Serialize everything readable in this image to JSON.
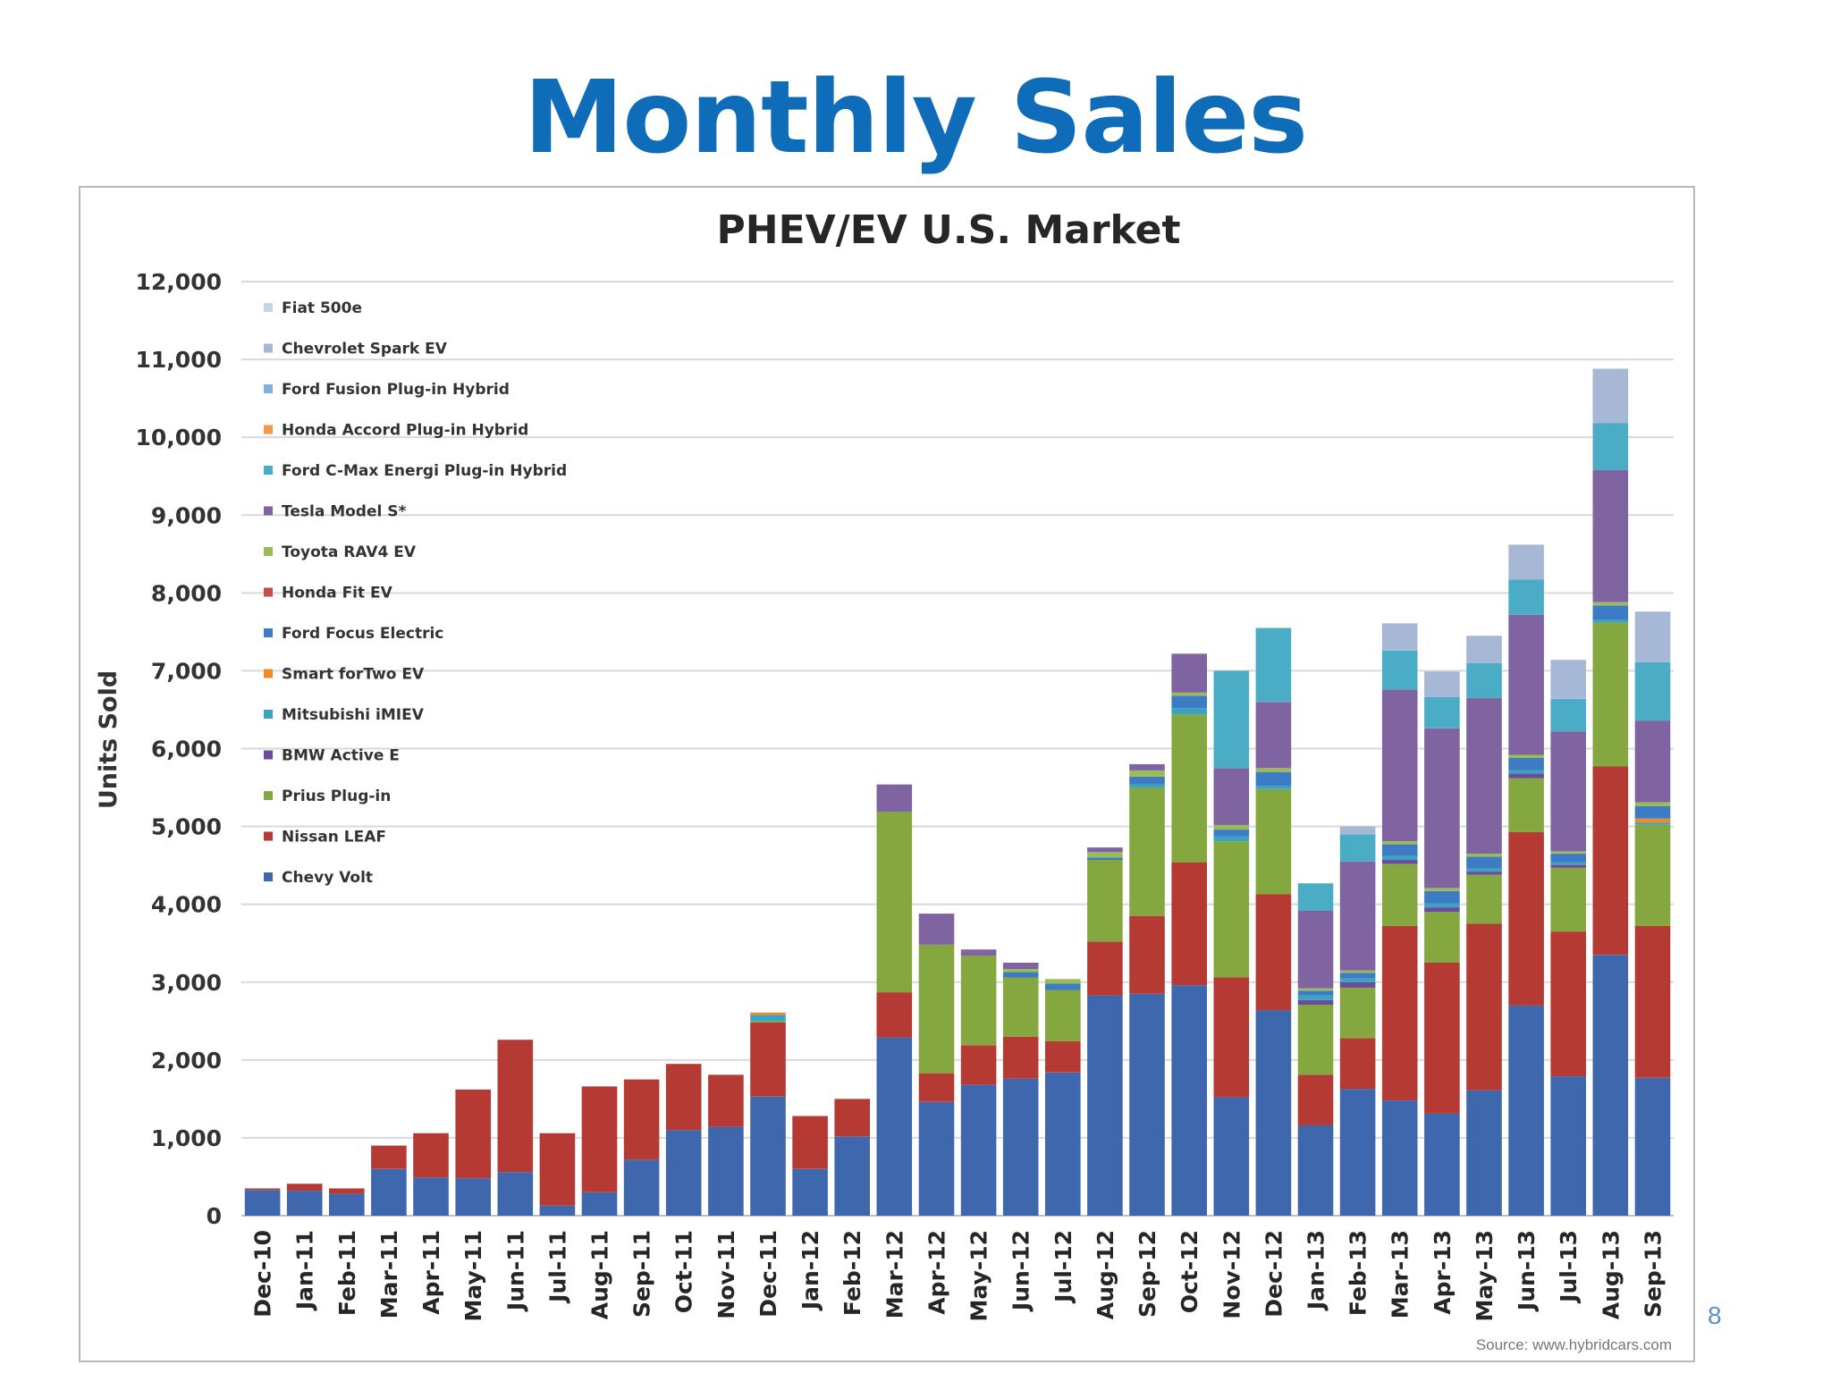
{
  "slide": {
    "title": "Monthly Sales",
    "page_number": "8"
  },
  "colors": {
    "Chevy Volt": "#3e67ad",
    "Nissan LEAF": "#b53a34",
    "Prius Plug-in": "#84a83f",
    "BMW Active E": "#6b4c9a",
    "Mitsubishi iMIEV": "#3aa3c1",
    "Smart forTwo EV": "#f08a24",
    "Ford Focus Electric": "#3d7cc4",
    "Honda Fit EV": "#c0504d",
    "Toyota RAV4 EV": "#9bbb59",
    "Tesla Model S*": "#8064a2",
    "Ford C-Max Energi Plug-in Hybrid": "#4bacc6",
    "Honda Accord Plug-in Hybrid": "#f79646",
    "Ford Fusion Plug-in Hybrid": "#7fb2e0",
    "Chevrolet Spark EV": "#a7b8d6",
    "Fiat 500e": "#c9d3e6"
  },
  "chart_data": {
    "type": "bar",
    "stacked": true,
    "title": "PHEV/EV U.S. Market",
    "ylabel": "Units Sold",
    "xlabel": "",
    "ylim": [
      0,
      12000
    ],
    "yticks": [
      "0",
      "1,000",
      "2,000",
      "3,000",
      "4,000",
      "5,000",
      "6,000",
      "7,000",
      "8,000",
      "9,000",
      "10,000",
      "11,000",
      "12,000"
    ],
    "grid": true,
    "legend_position": "top-left",
    "legend": [
      "Fiat 500e",
      "Chevrolet Spark EV",
      "Ford Fusion Plug-in Hybrid",
      "Honda Accord Plug-in Hybrid",
      "Ford C-Max Energi Plug-in Hybrid",
      "Tesla Model S*",
      "Toyota RAV4 EV",
      "Honda Fit EV",
      "Ford Focus Electric",
      "Smart forTwo EV",
      "Mitsubishi iMIEV",
      "BMW Active E",
      "Prius Plug-in",
      "Nissan LEAF",
      "Chevy Volt"
    ],
    "categories": [
      "Dec-10",
      "Jan-11",
      "Feb-11",
      "Mar-11",
      "Apr-11",
      "May-11",
      "Jun-11",
      "Jul-11",
      "Aug-11",
      "Sep-11",
      "Oct-11",
      "Nov-11",
      "Dec-11",
      "Jan-12",
      "Feb-12",
      "Mar-12",
      "Apr-12",
      "May-12",
      "Jun-12",
      "Jul-12",
      "Aug-12",
      "Sep-12",
      "Oct-12",
      "Nov-12",
      "Dec-12",
      "Jan-13",
      "Feb-13",
      "Mar-13",
      "Apr-13",
      "May-13",
      "Jun-13",
      "Jul-13",
      "Aug-13",
      "Sep-13"
    ],
    "series": [
      {
        "name": "Chevy Volt",
        "values": [
          330,
          320,
          280,
          600,
          490,
          480,
          560,
          130,
          300,
          720,
          1100,
          1140,
          1530,
          600,
          1020,
          2290,
          1460,
          1680,
          1760,
          1840,
          2830,
          2850,
          2960,
          1520,
          2640,
          1160,
          1630,
          1480,
          1310,
          1610,
          2700,
          1790,
          3350,
          1770
        ]
      },
      {
        "name": "Nissan LEAF",
        "values": [
          20,
          90,
          70,
          300,
          570,
          1140,
          1700,
          930,
          1360,
          1030,
          850,
          670,
          950,
          680,
          480,
          580,
          370,
          510,
          540,
          400,
          690,
          1000,
          1580,
          1540,
          1490,
          650,
          650,
          2240,
          1940,
          2140,
          2230,
          1860,
          2420,
          1950
        ]
      },
      {
        "name": "Prius Plug-in",
        "values": [
          0,
          0,
          0,
          0,
          0,
          0,
          0,
          0,
          0,
          0,
          0,
          0,
          20,
          0,
          0,
          2320,
          1650,
          1150,
          760,
          660,
          1050,
          1650,
          1900,
          1750,
          1350,
          900,
          650,
          800,
          650,
          630,
          690,
          820,
          1850,
          1300
        ]
      },
      {
        "name": "BMW Active E",
        "values": [
          0,
          0,
          0,
          0,
          0,
          0,
          0,
          0,
          0,
          0,
          0,
          0,
          0,
          0,
          0,
          0,
          0,
          0,
          0,
          0,
          0,
          0,
          0,
          0,
          0,
          60,
          70,
          50,
          60,
          40,
          60,
          40,
          0,
          0
        ]
      },
      {
        "name": "Mitsubishi iMIEV",
        "values": [
          0,
          0,
          0,
          0,
          0,
          0,
          0,
          0,
          0,
          0,
          0,
          0,
          80,
          0,
          0,
          0,
          0,
          0,
          0,
          0,
          0,
          40,
          80,
          60,
          40,
          60,
          50,
          50,
          50,
          40,
          40,
          30,
          40,
          30
        ]
      },
      {
        "name": "Smart forTwo EV",
        "values": [
          0,
          0,
          0,
          0,
          0,
          0,
          0,
          0,
          0,
          0,
          0,
          0,
          30,
          0,
          0,
          0,
          0,
          0,
          0,
          0,
          0,
          0,
          0,
          0,
          0,
          0,
          0,
          0,
          0,
          0,
          0,
          0,
          0,
          50
        ]
      },
      {
        "name": "Ford Focus Electric",
        "values": [
          0,
          0,
          0,
          0,
          0,
          0,
          0,
          0,
          0,
          0,
          0,
          0,
          0,
          0,
          0,
          0,
          0,
          0,
          70,
          80,
          30,
          100,
          160,
          90,
          180,
          60,
          70,
          150,
          160,
          150,
          160,
          110,
          180,
          160
        ]
      },
      {
        "name": "Honda Fit EV",
        "values": [
          0,
          0,
          0,
          0,
          0,
          0,
          0,
          0,
          0,
          0,
          0,
          0,
          0,
          0,
          0,
          0,
          0,
          0,
          0,
          0,
          0,
          0,
          0,
          0,
          0,
          0,
          0,
          0,
          0,
          0,
          0,
          0,
          0,
          0
        ]
      },
      {
        "name": "Toyota RAV4 EV",
        "values": [
          0,
          0,
          0,
          0,
          0,
          0,
          0,
          0,
          0,
          0,
          0,
          0,
          0,
          0,
          0,
          0,
          0,
          0,
          40,
          60,
          70,
          80,
          40,
          60,
          50,
          30,
          30,
          40,
          40,
          40,
          40,
          30,
          40,
          50
        ]
      },
      {
        "name": "Tesla Model S*",
        "values": [
          0,
          0,
          0,
          0,
          0,
          0,
          0,
          0,
          0,
          0,
          0,
          0,
          0,
          0,
          0,
          350,
          400,
          80,
          80,
          0,
          60,
          80,
          500,
          730,
          850,
          1000,
          1400,
          1950,
          2050,
          2000,
          1800,
          1540,
          1700,
          1050
        ]
      },
      {
        "name": "Ford C-Max Energi Plug-in Hybrid",
        "values": [
          0,
          0,
          0,
          0,
          0,
          0,
          0,
          0,
          0,
          0,
          0,
          0,
          0,
          0,
          0,
          0,
          0,
          0,
          0,
          0,
          0,
          0,
          0,
          1250,
          950,
          350,
          350,
          500,
          400,
          450,
          450,
          420,
          600,
          750
        ]
      },
      {
        "name": "Honda Accord Plug-in Hybrid",
        "values": [
          0,
          0,
          0,
          0,
          0,
          0,
          0,
          0,
          0,
          0,
          0,
          0,
          0,
          0,
          0,
          0,
          0,
          0,
          0,
          0,
          0,
          0,
          0,
          0,
          0,
          0,
          0,
          0,
          0,
          0,
          0,
          0,
          0,
          0
        ]
      },
      {
        "name": "Ford Fusion Plug-in Hybrid",
        "values": [
          0,
          0,
          0,
          0,
          0,
          0,
          0,
          0,
          0,
          0,
          0,
          0,
          0,
          0,
          0,
          0,
          0,
          0,
          0,
          0,
          0,
          0,
          0,
          0,
          0,
          0,
          0,
          0,
          0,
          0,
          0,
          0,
          0,
          0
        ]
      },
      {
        "name": "Chevrolet Spark EV",
        "values": [
          0,
          0,
          0,
          0,
          0,
          0,
          0,
          0,
          0,
          0,
          0,
          0,
          0,
          0,
          0,
          0,
          0,
          0,
          0,
          0,
          0,
          0,
          0,
          0,
          0,
          0,
          100,
          350,
          330,
          350,
          450,
          500,
          700,
          650
        ]
      },
      {
        "name": "Fiat 500e",
        "values": [
          0,
          0,
          0,
          0,
          0,
          0,
          0,
          0,
          0,
          0,
          0,
          0,
          0,
          0,
          0,
          0,
          0,
          0,
          0,
          0,
          0,
          0,
          0,
          0,
          0,
          0,
          0,
          0,
          0,
          0,
          0,
          0,
          0,
          0
        ]
      }
    ],
    "source": "Source: www.hybridcars.com"
  }
}
